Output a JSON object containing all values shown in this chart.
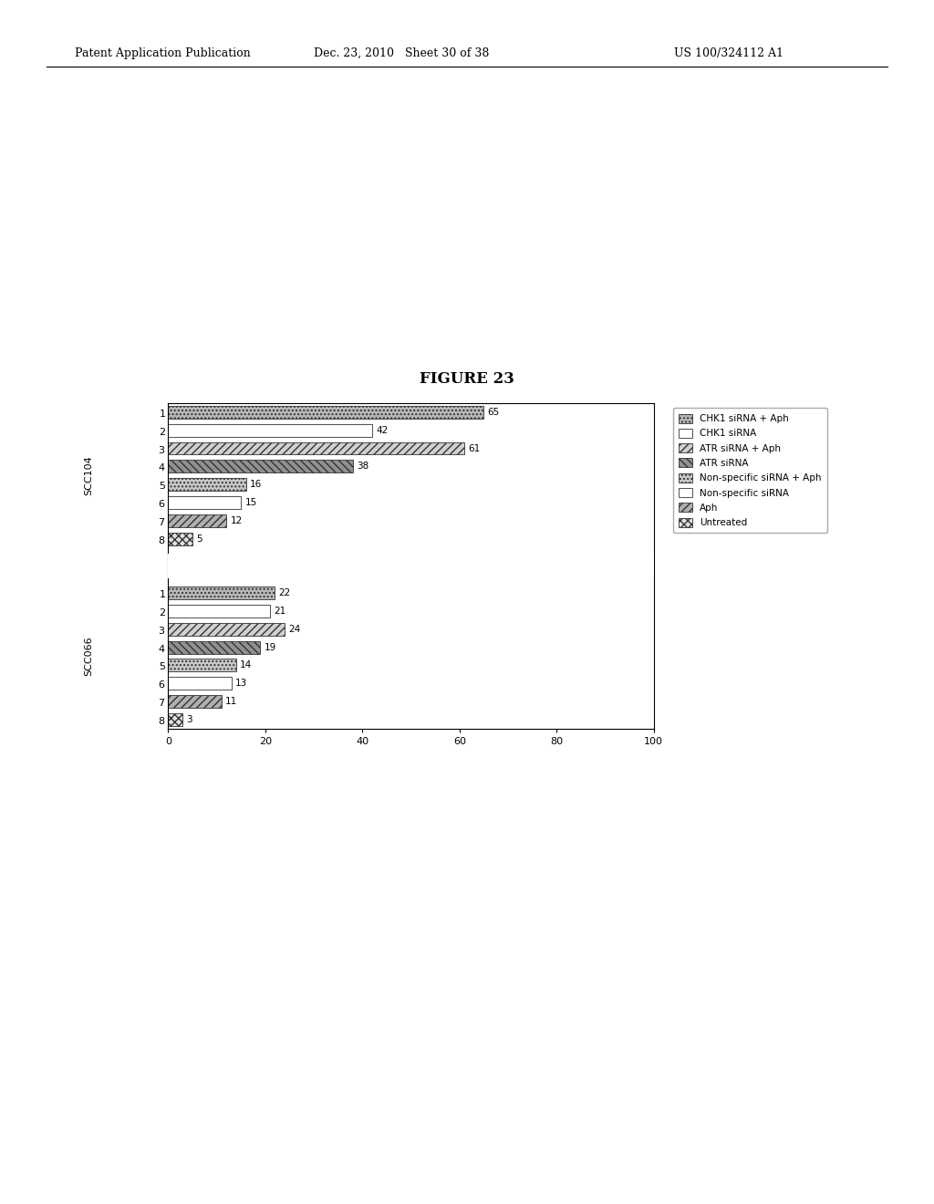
{
  "title": "FIGURE 23",
  "header_left": "Patent Application Publication",
  "header_mid": "Dec. 23, 2010   Sheet 30 of 38",
  "header_right": "US 100/324112 A1",
  "scc104_values": [
    65,
    42,
    61,
    38,
    16,
    15,
    12,
    5
  ],
  "scc066_values": [
    22,
    21,
    24,
    19,
    14,
    13,
    11,
    3
  ],
  "group1_label": "SCC104",
  "group2_label": "SCC066",
  "legend_labels": [
    "CHK1 siRNA + Aph",
    "CHK1 siRNA",
    "ATR siRNA + Aph",
    "ATR siRNA",
    "Non-specific siRNA + Aph",
    "Non-specific siRNA",
    "Aph",
    "Untreated"
  ],
  "xlim": [
    0,
    100
  ],
  "xticks": [
    0,
    20,
    40,
    60,
    80,
    100
  ],
  "background_color": "#ffffff"
}
